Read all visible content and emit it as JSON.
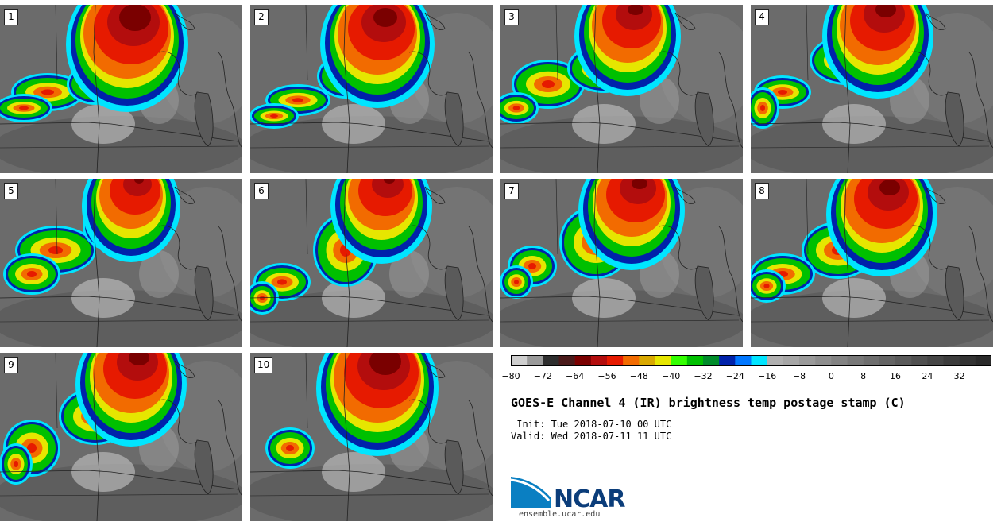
{
  "panels": [
    {
      "label": "1"
    },
    {
      "label": "2"
    },
    {
      "label": "3"
    },
    {
      "label": "4"
    },
    {
      "label": "5"
    },
    {
      "label": "6"
    },
    {
      "label": "7"
    },
    {
      "label": "8"
    },
    {
      "label": "9"
    },
    {
      "label": "10"
    }
  ],
  "colorbar": {
    "ticks": [
      "−80",
      "−72",
      "−64",
      "−56",
      "−48",
      "−40",
      "−32",
      "−24",
      "−16",
      "−8",
      "0",
      "8",
      "16",
      "24",
      "32"
    ],
    "colors": [
      "#cfcfcf",
      "#9a9a9a",
      "#2e2e2e",
      "#4a1a1a",
      "#7a0000",
      "#b30d0d",
      "#e61a00",
      "#f26b00",
      "#d9a800",
      "#e6e600",
      "#33ff00",
      "#00c000",
      "#008c2a",
      "#0022aa",
      "#0077ff",
      "#00e5ff",
      "#b0b0b0",
      "#a6a6a6",
      "#9a9a9a",
      "#8e8e8e",
      "#838383",
      "#787878",
      "#6e6e6e",
      "#646464",
      "#5a5a5a",
      "#505050",
      "#464646",
      "#3c3c3c",
      "#333333",
      "#2a2a2a"
    ]
  },
  "title": "GOES-E Channel 4 (IR) brightness temp postage stamp (C)",
  "init": " Init: Tue 2018-07-10 00 UTC",
  "valid": "Valid: Wed 2018-07-11 11 UTC",
  "logo": {
    "name": "NCAR",
    "url": "ensemble.ucar.edu"
  }
}
